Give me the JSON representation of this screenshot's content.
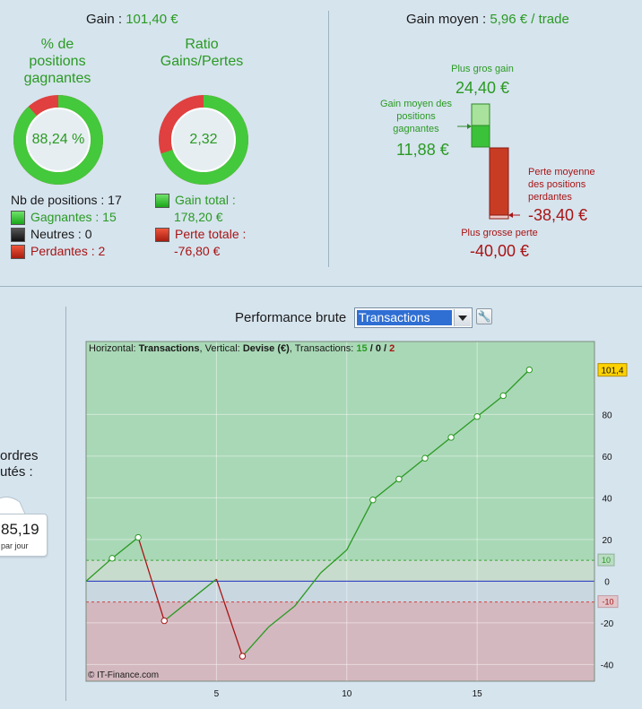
{
  "top_left": {
    "gain_label": "Gain :",
    "gain_value": "101,40 €",
    "pct_title": [
      "% de",
      "positions",
      "gagnantes"
    ],
    "pct_value": "88,24 %",
    "pct_fraction": 0.8824,
    "ratio_title": [
      "Ratio",
      "Gains/Pertes"
    ],
    "ratio_value": "2,32",
    "ratio_fraction": 0.699,
    "nb_positions": "Nb de positions : 17",
    "gagnantes": "Gagnantes : 15",
    "neutres": "Neutres : 0",
    "perdantes": "Perdantes : 2",
    "gain_total_label": "Gain total :",
    "gain_total_value": "178,20 €",
    "perte_totale_label": "Perte totale :",
    "perte_totale_value": "-76,80 €"
  },
  "top_right": {
    "gain_moyen_label": "Gain moyen :",
    "gain_moyen_value": "5,96 € / trade",
    "plus_gros_gain_label": "Plus gros gain",
    "plus_gros_gain_value": "24,40 €",
    "gain_moyen_pos_label": [
      "Gain moyen des",
      "positions",
      "gagnantes"
    ],
    "gain_moyen_pos_value": "11,88 €",
    "perte_moyenne_label": [
      "Perte moyenne",
      "des positions",
      "perdantes"
    ],
    "perte_moyenne_value": "-38,40 €",
    "plus_grosse_perte_label": "Plus grosse perte",
    "plus_grosse_perte_value": "-40,00 €"
  },
  "left_partial": {
    "line1": "ordres",
    "line2": "utés :",
    "card_value": "85,19",
    "card_sub": "par jour"
  },
  "perf": {
    "title": "Performance brute",
    "select_value": "Transactions",
    "wrench_icon": "wrench-icon"
  },
  "chart_data": {
    "type": "line",
    "header": {
      "h_label": "Horizontal:",
      "h_value": "Transactions",
      "v_label": ", Vertical:",
      "v_value": "Devise (€)",
      "t_label": ", Transactions:",
      "t_win": "15",
      "t_sep1": " / ",
      "t_neutral": "0",
      "t_sep2": " / ",
      "t_loss": "2"
    },
    "watermark": "© IT-Finance.com",
    "x": [
      0,
      1,
      2,
      3,
      4,
      5,
      6,
      7,
      8,
      9,
      10,
      11,
      12,
      13,
      14,
      15,
      16,
      17
    ],
    "y": [
      0,
      11,
      21,
      -19,
      -9,
      1,
      -36,
      -22,
      -12,
      4,
      15,
      39,
      49,
      59,
      69,
      79,
      89,
      101.4
    ],
    "markers": [
      1,
      2,
      3,
      6,
      11,
      12,
      13,
      14,
      15,
      16,
      17
    ],
    "loss_segments": [
      [
        2,
        3
      ],
      [
        5,
        6
      ]
    ],
    "xlim": [
      0,
      19.5
    ],
    "ylim": [
      -48,
      115
    ],
    "x_ticks": [
      5,
      10,
      15
    ],
    "y_ticks": [
      -40,
      -20,
      0,
      20,
      40,
      60,
      80
    ],
    "last_value_label": "101,4",
    "upper_threshold": 10,
    "lower_threshold": -10,
    "upper_threshold_label": "10",
    "lower_threshold_label": "-10",
    "colors": {
      "gain_zone": "#a9d8b6",
      "loss_zone": "#d3b8bf",
      "gain_line": "#2a9a22",
      "loss_line": "#a81414",
      "zero_line": "#2030c0"
    }
  }
}
